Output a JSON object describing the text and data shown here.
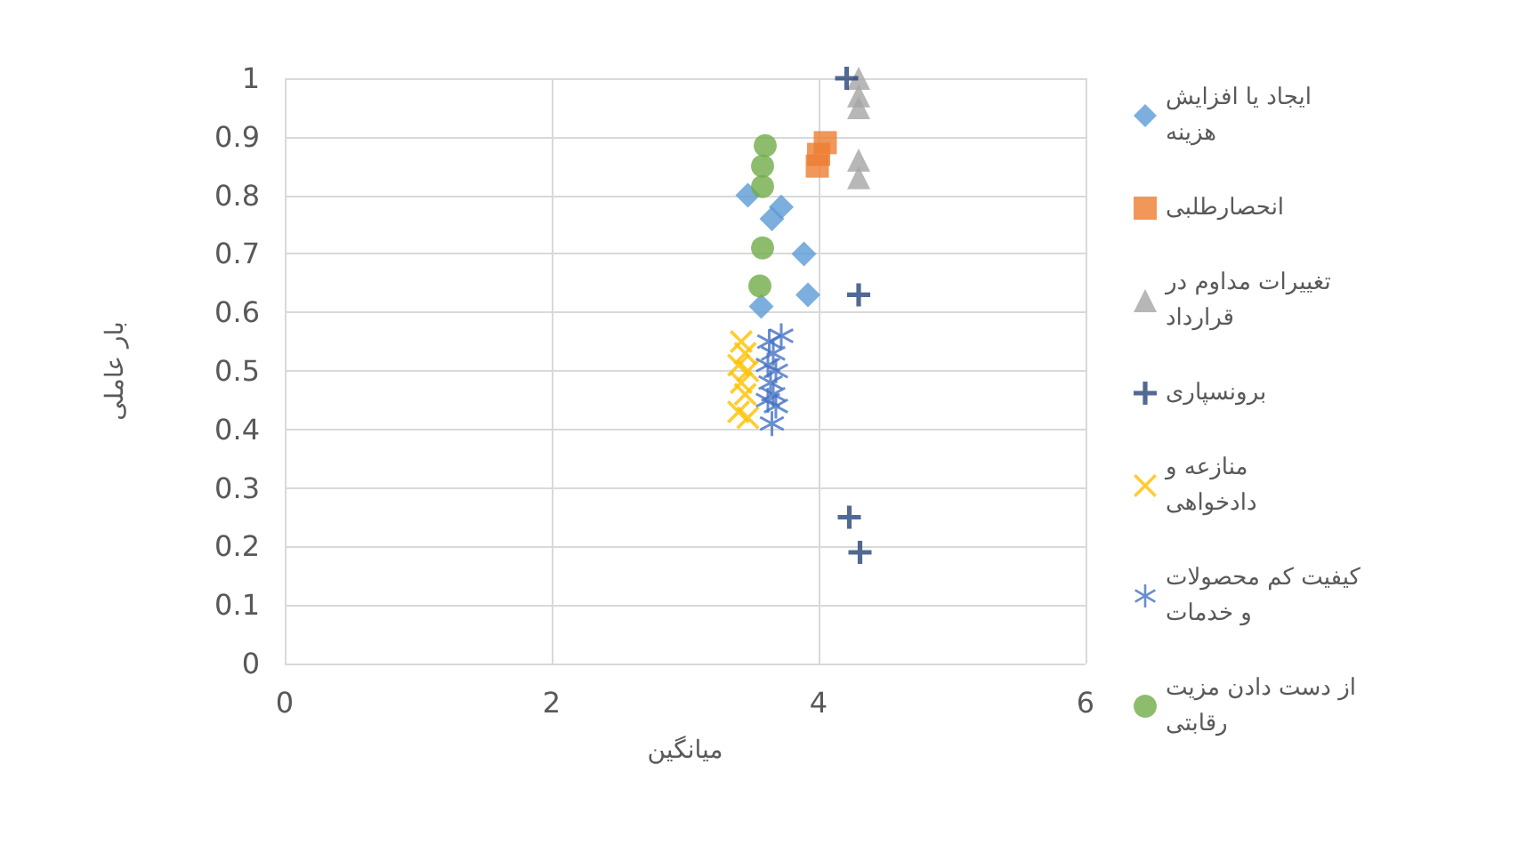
{
  "chart_data": {
    "type": "scatter",
    "xlabel": "میانگین",
    "ylabel": "بار عاملی",
    "xlim": [
      0,
      6
    ],
    "xticks": [
      0,
      2,
      4,
      6
    ],
    "ylim": [
      0,
      1
    ],
    "yticks": [
      0,
      0.1,
      0.2,
      0.3,
      0.4,
      0.5,
      0.6,
      0.7,
      0.8,
      0.9,
      1
    ],
    "grid": true,
    "legend": "right",
    "series": [
      {
        "name": "ایجاد یا افزایش هزینه",
        "color": "#5b9bd5",
        "marker": "diamond",
        "x": [
          3.47,
          3.72,
          3.65,
          3.89,
          3.92,
          3.57
        ],
        "values": [
          0.8,
          0.78,
          0.76,
          0.7,
          0.63,
          0.61
        ]
      },
      {
        "name": "انحصارطلبی",
        "color": "#ed7d31",
        "marker": "square",
        "x": [
          4.05,
          4.0,
          3.99
        ],
        "values": [
          0.89,
          0.87,
          0.85
        ]
      },
      {
        "name": "تغییرات مداوم در قرارداد",
        "color": "#a5a5a5",
        "marker": "triangle",
        "x": [
          4.3,
          4.3,
          4.3,
          4.3,
          4.3
        ],
        "values": [
          1.0,
          0.97,
          0.95,
          0.86,
          0.83
        ]
      },
      {
        "name": "برونسپاری",
        "color": "#264478",
        "marker": "plus",
        "x": [
          4.21,
          4.3,
          4.23,
          4.31
        ],
        "values": [
          1.0,
          0.63,
          0.25,
          0.19
        ]
      },
      {
        "name": "منازعه و دادخواهی",
        "color": "#ffc000",
        "marker": "cross",
        "x": [
          3.42,
          3.45,
          3.4,
          3.47,
          3.42,
          3.45,
          3.4,
          3.47
        ],
        "values": [
          0.55,
          0.53,
          0.51,
          0.5,
          0.48,
          0.46,
          0.43,
          0.42
        ]
      },
      {
        "name": "کیفیت کم محصولات و خدمات",
        "color": "#4472c4",
        "marker": "star",
        "x": [
          3.72,
          3.63,
          3.66,
          3.62,
          3.68,
          3.64,
          3.66,
          3.62,
          3.68,
          3.65
        ],
        "values": [
          0.56,
          0.55,
          0.53,
          0.51,
          0.5,
          0.48,
          0.46,
          0.45,
          0.44,
          0.41
        ]
      },
      {
        "name": "از دست دادن مزیت رقابتی",
        "color": "#70ad47",
        "marker": "circle",
        "x": [
          3.6,
          3.58,
          3.58,
          3.58,
          3.56
        ],
        "values": [
          0.885,
          0.85,
          0.815,
          0.71,
          0.645
        ]
      }
    ]
  }
}
